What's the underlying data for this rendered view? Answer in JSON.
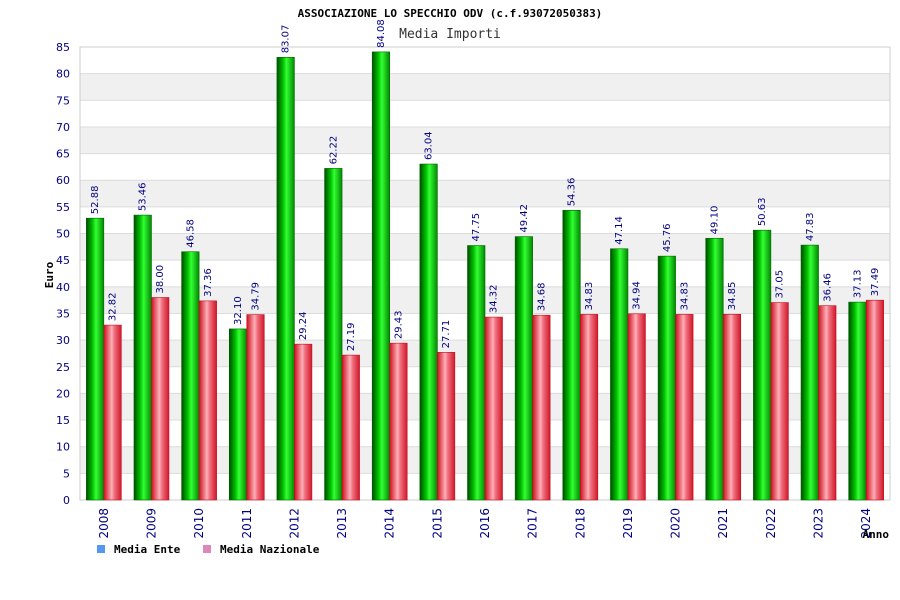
{
  "chart_data": {
    "type": "bar",
    "title": "ASSOCIAZIONE LO SPECCHIO ODV (c.f.93072050383)",
    "subtitle": "Media Importi",
    "xlabel": "Anno",
    "ylabel": "Euro",
    "ylim": [
      0,
      85
    ],
    "ytick_step": 5,
    "grid": true,
    "legend_position": "bottom-left",
    "categories": [
      "2008",
      "2009",
      "2010",
      "2011",
      "2012",
      "2013",
      "2014",
      "2015",
      "2016",
      "2017",
      "2018",
      "2019",
      "2020",
      "2021",
      "2022",
      "2023",
      "2024"
    ],
    "series": [
      {
        "name": "Media Ente",
        "color": "#00aa00",
        "legend_color": "#5599ee",
        "values": [
          52.88,
          53.46,
          46.58,
          32.1,
          83.07,
          62.22,
          84.08,
          63.04,
          47.75,
          49.42,
          54.36,
          47.14,
          45.76,
          49.1,
          50.63,
          47.83,
          37.13
        ],
        "labels": [
          "52.88",
          "53.46",
          "46.58",
          "32.10",
          "83.07",
          "62.22",
          "84.08",
          "63.04",
          "47.75",
          "49.42",
          "54.36",
          "47.14",
          "45.76",
          "49.10",
          "50.63",
          "47.83",
          "37.13"
        ]
      },
      {
        "name": "Media Nazionale",
        "color": "#e8303a",
        "legend_color": "#dd88bb",
        "values": [
          32.82,
          38.0,
          37.36,
          34.79,
          29.24,
          27.19,
          29.43,
          27.71,
          34.32,
          34.68,
          34.83,
          34.94,
          34.83,
          34.85,
          37.05,
          36.46,
          37.49
        ],
        "labels": [
          "32.82",
          "38.00",
          "37.36",
          "34.79",
          "29.24",
          "27.19",
          "29.43",
          "27.71",
          "34.32",
          "34.68",
          "34.83",
          "34.94",
          "34.83",
          "34.85",
          "37.05",
          "36.46",
          "37.49"
        ]
      }
    ]
  }
}
